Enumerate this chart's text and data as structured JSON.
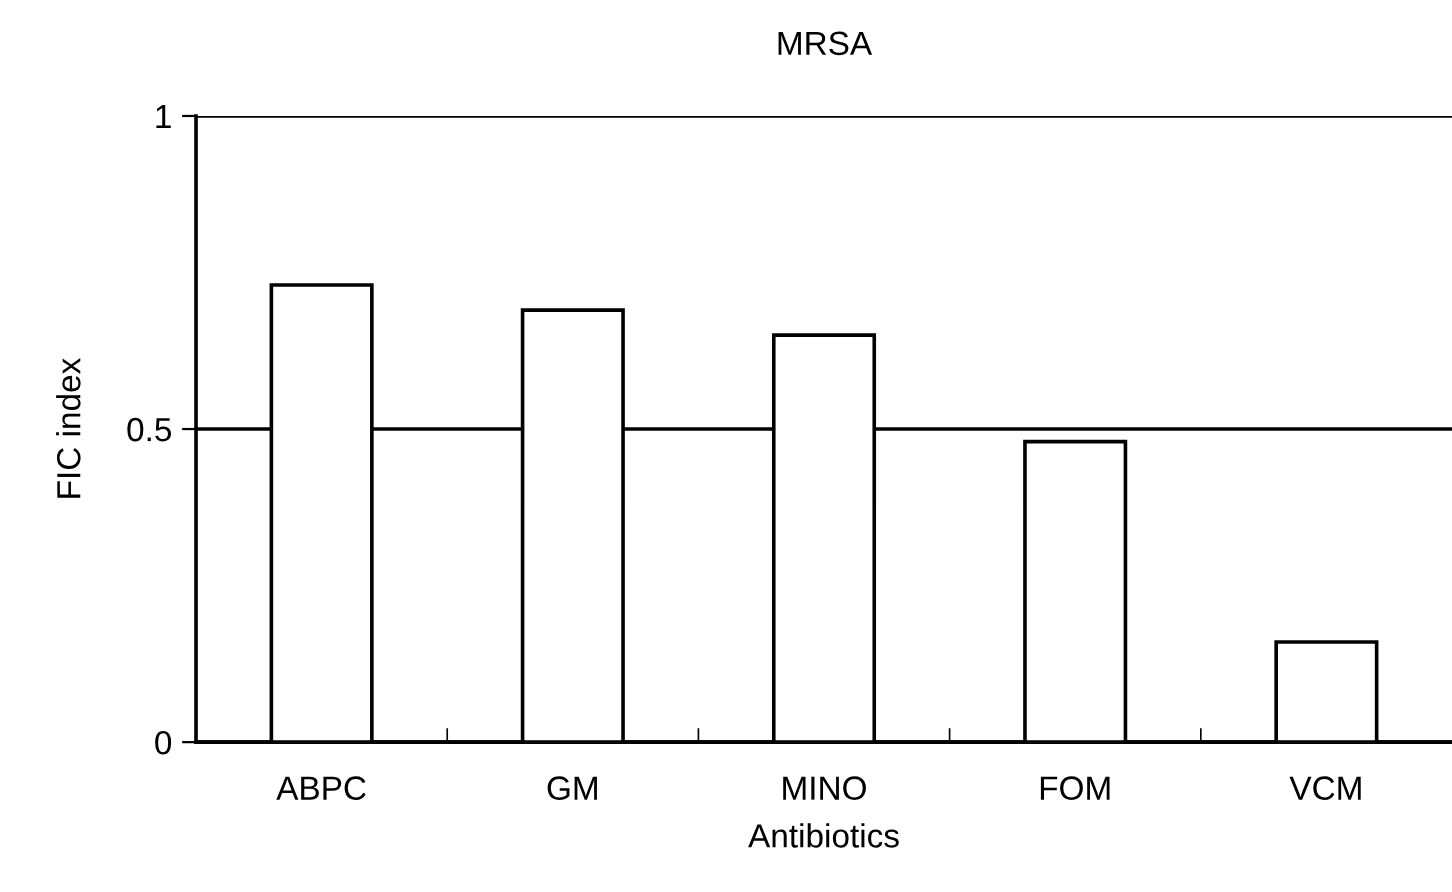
{
  "chart_data": {
    "type": "bar",
    "title": "MRSA",
    "xlabel": "Antibiotics",
    "ylabel": "FIC index",
    "categories": [
      "ABPC",
      "GM",
      "MINO",
      "FOM",
      "VCM"
    ],
    "values": [
      0.73,
      0.69,
      0.65,
      0.48,
      0.16
    ],
    "color": "#ffffff",
    "ylim": [
      0,
      1
    ],
    "yticks": [
      0,
      0.5,
      1
    ],
    "grid": "y"
  }
}
